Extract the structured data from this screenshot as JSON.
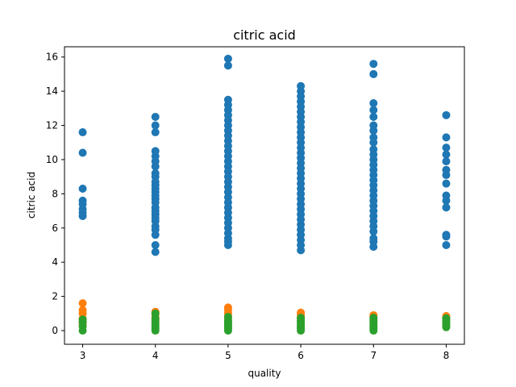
{
  "chart_data": {
    "type": "scatter",
    "title": "citric acid",
    "xlabel": "quality",
    "ylabel": "citric acid",
    "xlim": [
      2.75,
      8.25
    ],
    "ylim": [
      -0.8,
      16.6
    ],
    "x_ticks": [
      3,
      4,
      5,
      6,
      7,
      8
    ],
    "y_ticks": [
      0,
      2,
      4,
      6,
      8,
      10,
      12,
      14,
      16
    ],
    "grid": false,
    "legend": "none",
    "series": [
      {
        "color": "#1f77b4",
        "points": [
          [
            3,
            11.6
          ],
          [
            3,
            10.4
          ],
          [
            3,
            8.3
          ],
          [
            3,
            7.6
          ],
          [
            3,
            7.4
          ],
          [
            3,
            7.1
          ],
          [
            3,
            6.9
          ],
          [
            3,
            6.7
          ],
          [
            4,
            12.5
          ],
          [
            4,
            12.0
          ],
          [
            4,
            11.6
          ],
          [
            4,
            10.5
          ],
          [
            4,
            10.2
          ],
          [
            4,
            9.9
          ],
          [
            4,
            9.6
          ],
          [
            4,
            9.2
          ],
          [
            4,
            9.0
          ],
          [
            4,
            8.7
          ],
          [
            4,
            8.5
          ],
          [
            4,
            8.3
          ],
          [
            4,
            8.1
          ],
          [
            4,
            7.9
          ],
          [
            4,
            7.7
          ],
          [
            4,
            7.5
          ],
          [
            4,
            7.2
          ],
          [
            4,
            7.0
          ],
          [
            4,
            6.8
          ],
          [
            4,
            6.6
          ],
          [
            4,
            6.4
          ],
          [
            4,
            6.1
          ],
          [
            4,
            5.9
          ],
          [
            4,
            5.6
          ],
          [
            4,
            5.0
          ],
          [
            4,
            4.6
          ],
          [
            5,
            15.9
          ],
          [
            5,
            15.5
          ],
          [
            5,
            13.5
          ],
          [
            5,
            13.2
          ],
          [
            5,
            12.9
          ],
          [
            5,
            12.6
          ],
          [
            5,
            12.3
          ],
          [
            5,
            12.0
          ],
          [
            5,
            11.7
          ],
          [
            5,
            11.4
          ],
          [
            5,
            11.1
          ],
          [
            5,
            10.8
          ],
          [
            5,
            10.5
          ],
          [
            5,
            10.2
          ],
          [
            5,
            9.9
          ],
          [
            5,
            9.6
          ],
          [
            5,
            9.3
          ],
          [
            5,
            9.0
          ],
          [
            5,
            8.7
          ],
          [
            5,
            8.4
          ],
          [
            5,
            8.1
          ],
          [
            5,
            7.8
          ],
          [
            5,
            7.5
          ],
          [
            5,
            7.2
          ],
          [
            5,
            6.9
          ],
          [
            5,
            6.6
          ],
          [
            5,
            6.3
          ],
          [
            5,
            6.0
          ],
          [
            5,
            5.7
          ],
          [
            5,
            5.4
          ],
          [
            5,
            5.2
          ],
          [
            5,
            5.0
          ],
          [
            6,
            14.3
          ],
          [
            6,
            14.0
          ],
          [
            6,
            13.7
          ],
          [
            6,
            13.4
          ],
          [
            6,
            13.1
          ],
          [
            6,
            12.8
          ],
          [
            6,
            12.5
          ],
          [
            6,
            12.2
          ],
          [
            6,
            11.9
          ],
          [
            6,
            11.6
          ],
          [
            6,
            11.3
          ],
          [
            6,
            11.0
          ],
          [
            6,
            10.7
          ],
          [
            6,
            10.4
          ],
          [
            6,
            10.1
          ],
          [
            6,
            9.8
          ],
          [
            6,
            9.5
          ],
          [
            6,
            9.2
          ],
          [
            6,
            8.9
          ],
          [
            6,
            8.6
          ],
          [
            6,
            8.3
          ],
          [
            6,
            8.0
          ],
          [
            6,
            7.7
          ],
          [
            6,
            7.4
          ],
          [
            6,
            7.1
          ],
          [
            6,
            6.8
          ],
          [
            6,
            6.5
          ],
          [
            6,
            6.2
          ],
          [
            6,
            5.9
          ],
          [
            6,
            5.6
          ],
          [
            6,
            5.3
          ],
          [
            6,
            5.0
          ],
          [
            6,
            4.7
          ],
          [
            7,
            15.6
          ],
          [
            7,
            15.0
          ],
          [
            7,
            13.3
          ],
          [
            7,
            12.9
          ],
          [
            7,
            12.5
          ],
          [
            7,
            12.0
          ],
          [
            7,
            11.7
          ],
          [
            7,
            11.3
          ],
          [
            7,
            11.0
          ],
          [
            7,
            10.6
          ],
          [
            7,
            10.3
          ],
          [
            7,
            10.0
          ],
          [
            7,
            9.7
          ],
          [
            7,
            9.4
          ],
          [
            7,
            9.1
          ],
          [
            7,
            8.8
          ],
          [
            7,
            8.5
          ],
          [
            7,
            8.2
          ],
          [
            7,
            7.9
          ],
          [
            7,
            7.6
          ],
          [
            7,
            7.3
          ],
          [
            7,
            7.0
          ],
          [
            7,
            6.7
          ],
          [
            7,
            6.4
          ],
          [
            7,
            6.1
          ],
          [
            7,
            5.8
          ],
          [
            7,
            5.4
          ],
          [
            7,
            5.2
          ],
          [
            7,
            4.9
          ],
          [
            8,
            12.6
          ],
          [
            8,
            11.3
          ],
          [
            8,
            10.7
          ],
          [
            8,
            10.3
          ],
          [
            8,
            9.9
          ],
          [
            8,
            9.4
          ],
          [
            8,
            9.1
          ],
          [
            8,
            8.6
          ],
          [
            8,
            7.9
          ],
          [
            8,
            7.6
          ],
          [
            8,
            7.2
          ],
          [
            8,
            5.6
          ],
          [
            8,
            5.5
          ],
          [
            8,
            5.0
          ]
        ]
      },
      {
        "color": "#ff7f0e",
        "points": [
          [
            3,
            1.6
          ],
          [
            3,
            1.2
          ],
          [
            3,
            1.0
          ],
          [
            3,
            0.7
          ],
          [
            3,
            0.6
          ],
          [
            3,
            0.4
          ],
          [
            4,
            1.1
          ],
          [
            4,
            1.0
          ],
          [
            4,
            0.8
          ],
          [
            4,
            0.6
          ],
          [
            4,
            0.4
          ],
          [
            5,
            1.35
          ],
          [
            5,
            1.2
          ],
          [
            5,
            1.0
          ],
          [
            5,
            0.8
          ],
          [
            5,
            0.6
          ],
          [
            6,
            1.05
          ],
          [
            6,
            0.95
          ],
          [
            6,
            0.8
          ],
          [
            6,
            0.6
          ],
          [
            7,
            0.9
          ],
          [
            7,
            0.8
          ],
          [
            7,
            0.6
          ],
          [
            8,
            0.85
          ],
          [
            8,
            0.7
          ],
          [
            8,
            0.55
          ]
        ]
      },
      {
        "color": "#2ca02c",
        "points": [
          [
            3,
            0.65
          ],
          [
            3,
            0.5
          ],
          [
            3,
            0.25
          ],
          [
            3,
            0.0
          ],
          [
            4,
            1.0
          ],
          [
            4,
            0.7
          ],
          [
            4,
            0.5
          ],
          [
            4,
            0.35
          ],
          [
            4,
            0.2
          ],
          [
            4,
            0.1
          ],
          [
            4,
            0.0
          ],
          [
            5,
            0.8
          ],
          [
            5,
            0.6
          ],
          [
            5,
            0.5
          ],
          [
            5,
            0.4
          ],
          [
            5,
            0.3
          ],
          [
            5,
            0.2
          ],
          [
            5,
            0.1
          ],
          [
            5,
            0.0
          ],
          [
            6,
            0.75
          ],
          [
            6,
            0.6
          ],
          [
            6,
            0.5
          ],
          [
            6,
            0.4
          ],
          [
            6,
            0.3
          ],
          [
            6,
            0.2
          ],
          [
            6,
            0.1
          ],
          [
            6,
            0.0
          ],
          [
            7,
            0.75
          ],
          [
            7,
            0.6
          ],
          [
            7,
            0.5
          ],
          [
            7,
            0.4
          ],
          [
            7,
            0.3
          ],
          [
            7,
            0.2
          ],
          [
            7,
            0.1
          ],
          [
            7,
            0.0
          ],
          [
            8,
            0.72
          ],
          [
            8,
            0.6
          ],
          [
            8,
            0.5
          ],
          [
            8,
            0.4
          ],
          [
            8,
            0.3
          ],
          [
            8,
            0.2
          ]
        ]
      }
    ]
  }
}
